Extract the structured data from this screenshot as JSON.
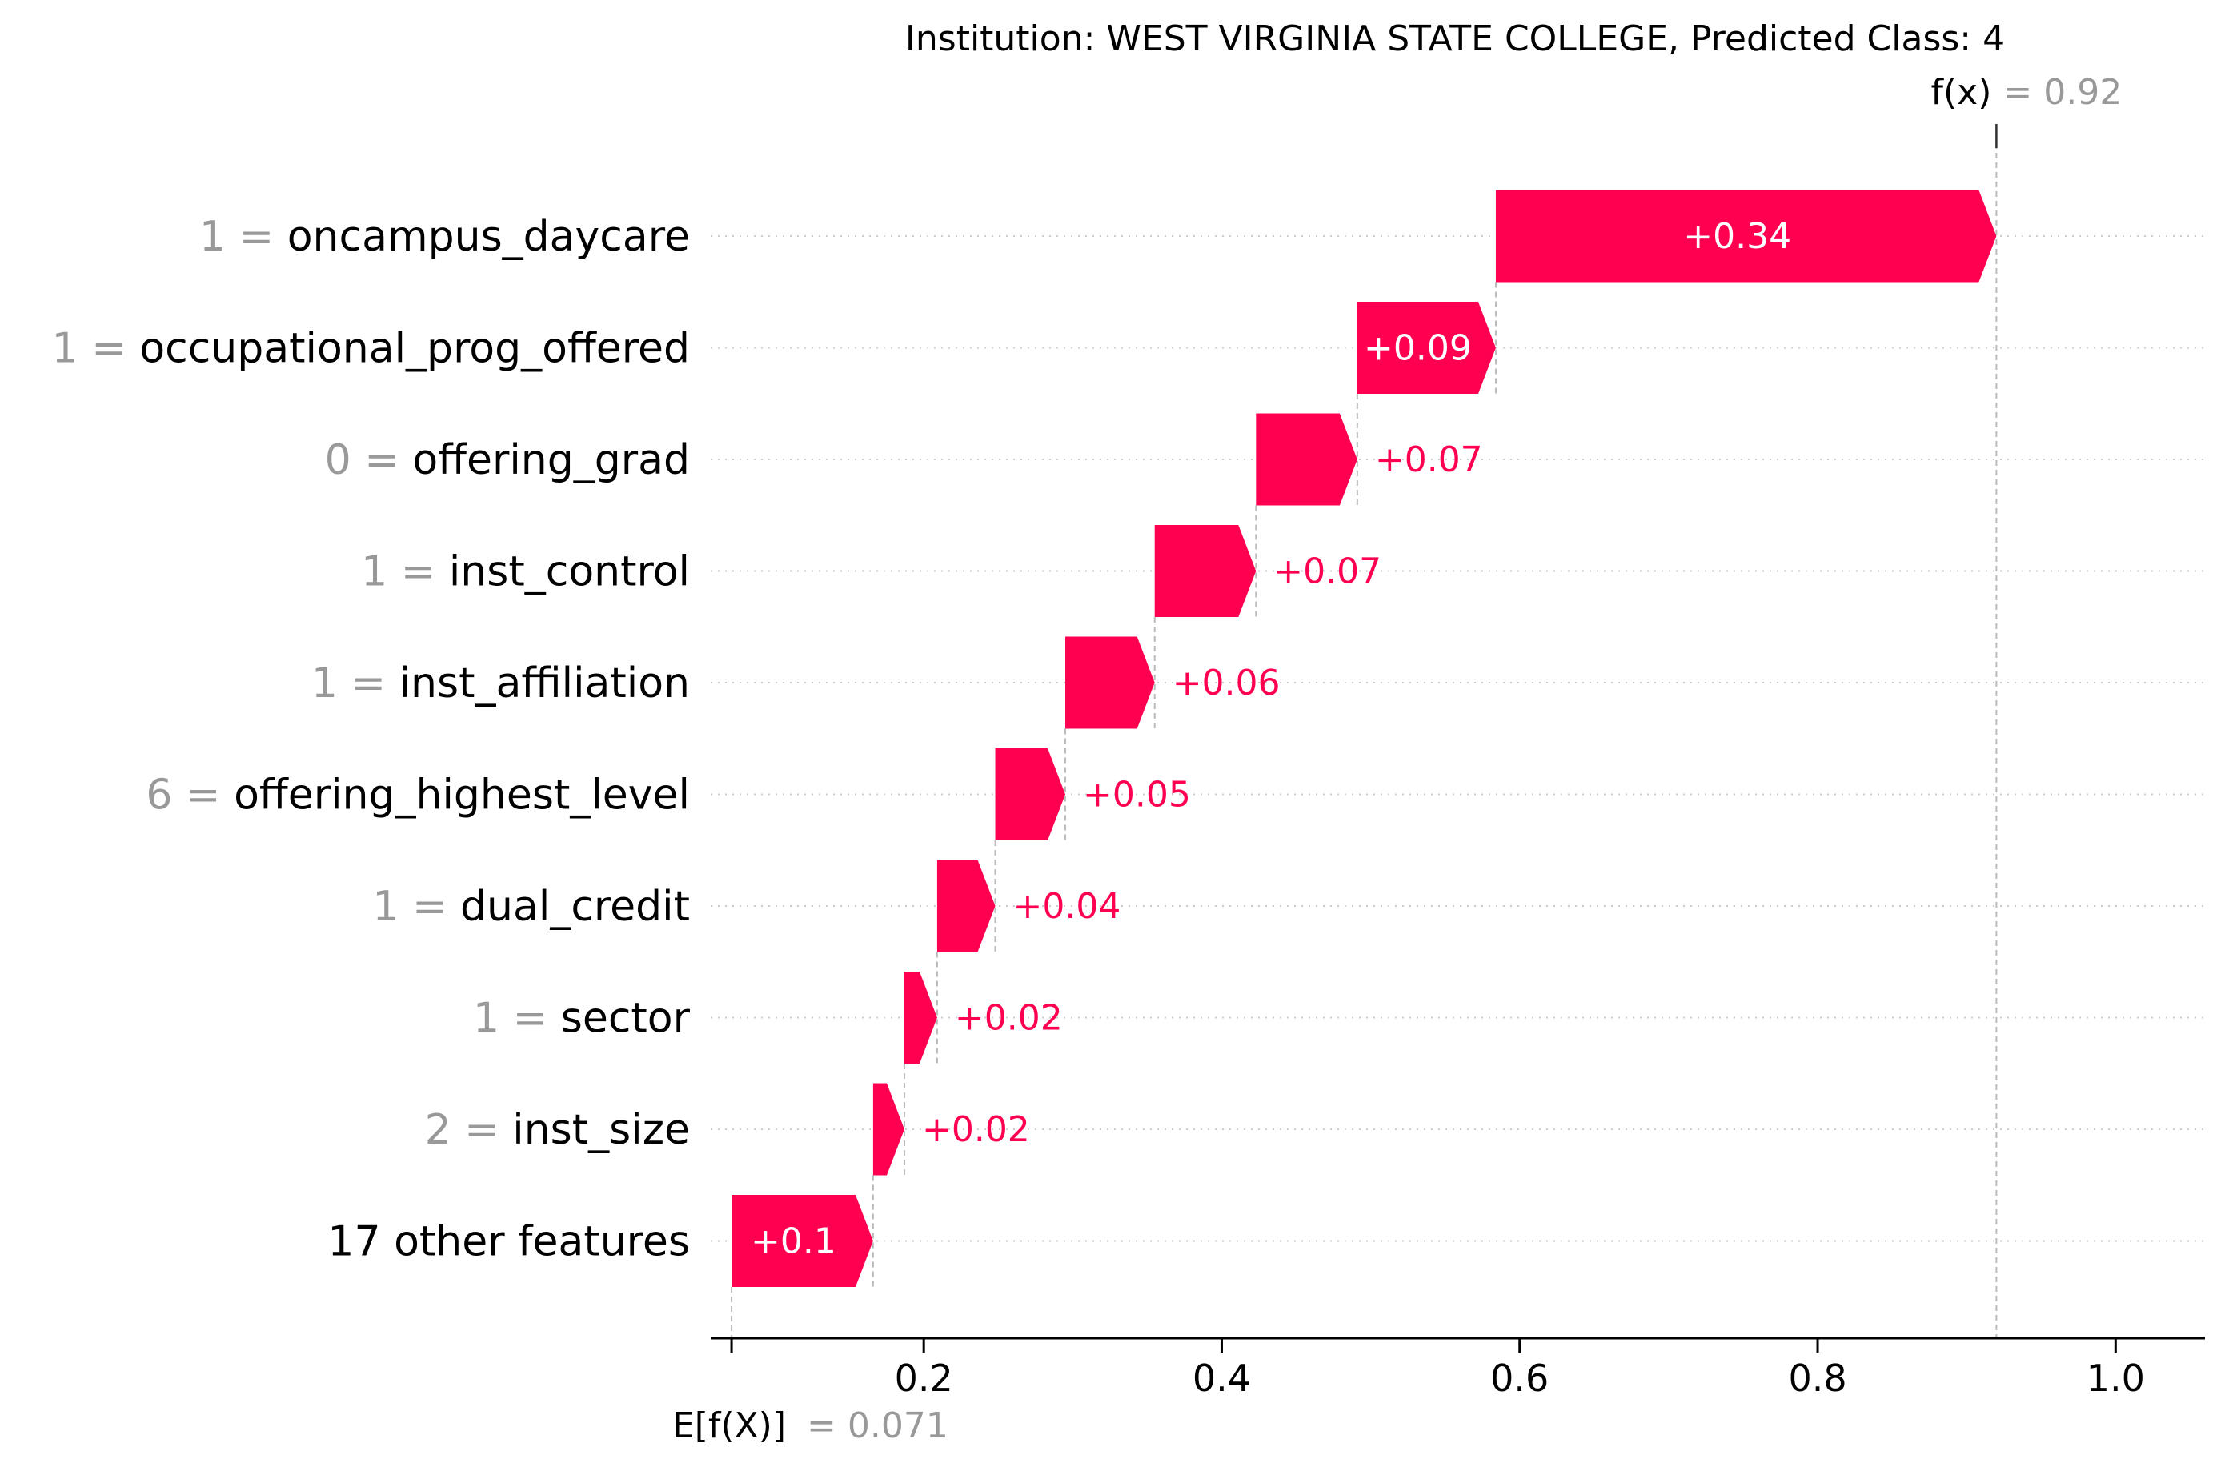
{
  "chart_data": {
    "type": "waterfall",
    "title": "Institution: WEST VIRGINIA STATE COLLEGE, Predicted Class: 4",
    "base_value": 0.071,
    "output_value": 0.92,
    "base_label_text": "E[f(X)]",
    "base_value_text": "= 0.071",
    "output_label_text": "f(x)",
    "output_value_text": "= 0.92",
    "xlim": [
      0.057,
      1.06
    ],
    "x_ticks": [
      0.2,
      0.4,
      0.6,
      0.8,
      1.0
    ],
    "x_tick_labels": [
      "0.2",
      "0.4",
      "0.6",
      "0.8",
      "1.0"
    ],
    "grid": "horizontal dotted",
    "features": [
      {
        "value": "1",
        "name": "oncampus_daycare",
        "start": 0.584,
        "end": 0.92,
        "label": "+0.34"
      },
      {
        "value": "1",
        "name": "occupational_prog_offered",
        "start": 0.491,
        "end": 0.584,
        "label": "+0.09"
      },
      {
        "value": "0",
        "name": "offering_grad",
        "start": 0.423,
        "end": 0.491,
        "label": "+0.07"
      },
      {
        "value": "1",
        "name": "inst_control",
        "start": 0.355,
        "end": 0.423,
        "label": "+0.07"
      },
      {
        "value": "1",
        "name": "inst_affiliation",
        "start": 0.295,
        "end": 0.355,
        "label": "+0.06"
      },
      {
        "value": "6",
        "name": "offering_highest_level",
        "start": 0.248,
        "end": 0.295,
        "label": "+0.05"
      },
      {
        "value": "1",
        "name": "dual_credit",
        "start": 0.209,
        "end": 0.248,
        "label": "+0.04"
      },
      {
        "value": "1",
        "name": "sector",
        "start": 0.187,
        "end": 0.209,
        "label": "+0.02"
      },
      {
        "value": "2",
        "name": "inst_size",
        "start": 0.166,
        "end": 0.187,
        "label": "+0.02"
      },
      {
        "value": "",
        "name": "17 other features",
        "start": 0.071,
        "end": 0.166,
        "label": "+0.1"
      }
    ],
    "colors": {
      "positive": "#ff0051",
      "feature_value": "#999999",
      "axis": "#000000",
      "grid": "#cccccc"
    }
  }
}
